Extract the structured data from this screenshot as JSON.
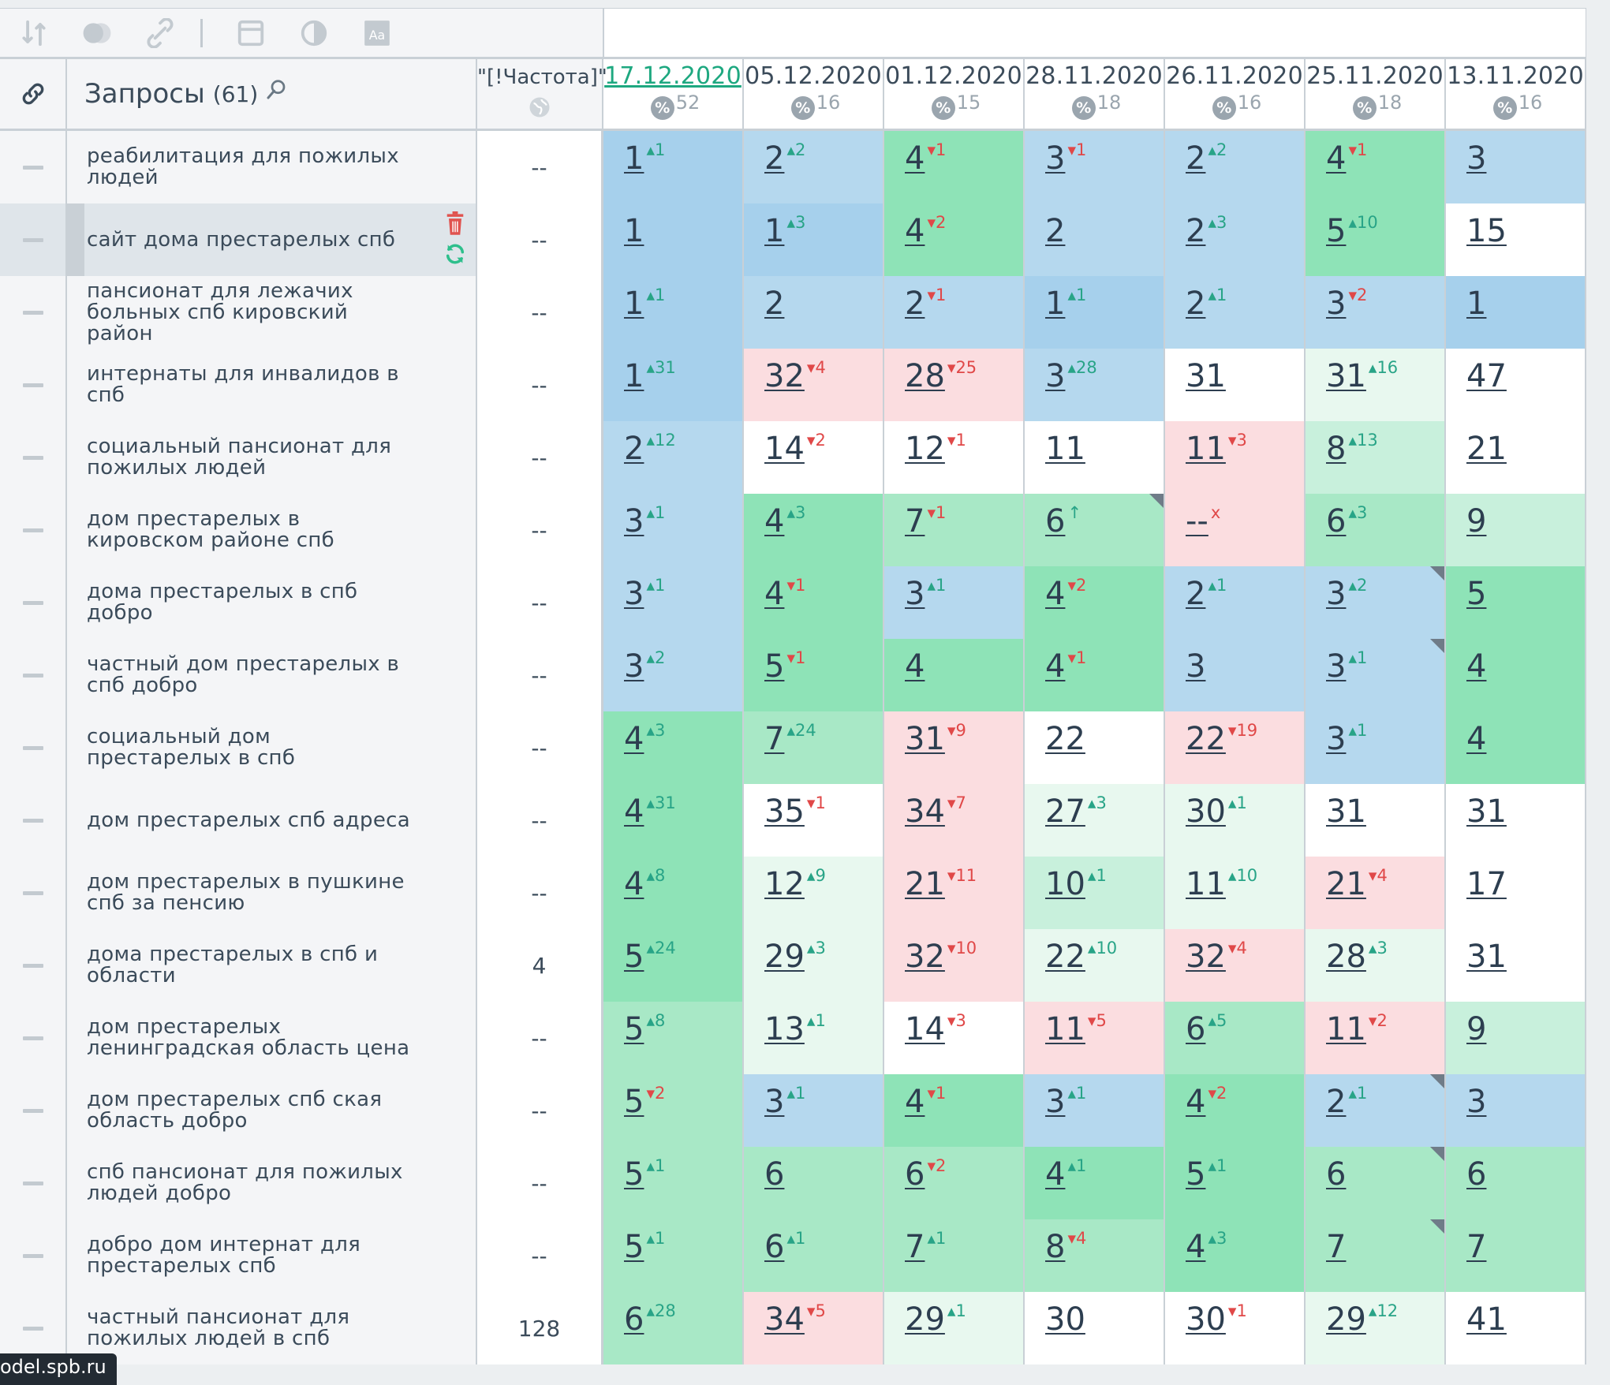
{
  "toolbar": {
    "icons": [
      "sort-icon",
      "toggle-icon",
      "link-icon",
      "calendar-icon",
      "contrast-icon",
      "font-icon"
    ]
  },
  "header": {
    "queries_title": "Запросы",
    "queries_count": "(61)",
    "frequency_title": "\"[!Частота]\"",
    "dates": [
      {
        "date": "17.12.2020",
        "pct": "52",
        "active": true
      },
      {
        "date": "05.12.2020",
        "pct": "16",
        "active": false
      },
      {
        "date": "01.12.2020",
        "pct": "15",
        "active": false
      },
      {
        "date": "28.11.2020",
        "pct": "18",
        "active": false
      },
      {
        "date": "26.11.2020",
        "pct": "16",
        "active": false
      },
      {
        "date": "25.11.2020",
        "pct": "18",
        "active": false
      },
      {
        "date": "13.11.2020",
        "pct": "16",
        "active": false
      }
    ],
    "pct_symbol": "%"
  },
  "rows": [
    {
      "query": "реабилитация для пожилых людей",
      "freq": "--",
      "cells": [
        {
          "v": "1",
          "c": "1",
          "d": "up",
          "bg": "bd"
        },
        {
          "v": "2",
          "c": "2",
          "d": "up",
          "bg": "b"
        },
        {
          "v": "4",
          "c": "1",
          "d": "dn",
          "bg": "g"
        },
        {
          "v": "3",
          "c": "1",
          "d": "dn",
          "bg": "b"
        },
        {
          "v": "2",
          "c": "2",
          "d": "up",
          "bg": "b"
        },
        {
          "v": "4",
          "c": "1",
          "d": "dn",
          "bg": "g"
        },
        {
          "v": "3",
          "c": "",
          "d": "",
          "bg": "b"
        }
      ]
    },
    {
      "query": "сайт дома престарелых спб",
      "freq": "--",
      "hl": true,
      "cells": [
        {
          "v": "1",
          "c": "",
          "d": "",
          "bg": "bd"
        },
        {
          "v": "1",
          "c": "3",
          "d": "up",
          "bg": "bd"
        },
        {
          "v": "4",
          "c": "2",
          "d": "dn",
          "bg": "g"
        },
        {
          "v": "2",
          "c": "",
          "d": "",
          "bg": "b"
        },
        {
          "v": "2",
          "c": "3",
          "d": "up",
          "bg": "b"
        },
        {
          "v": "5",
          "c": "10",
          "d": "up",
          "bg": "g"
        },
        {
          "v": "15",
          "c": "",
          "d": "",
          "bg": "w"
        }
      ]
    },
    {
      "query": "пансионат для лежачих больных спб кировский район",
      "freq": "--",
      "cells": [
        {
          "v": "1",
          "c": "1",
          "d": "up",
          "bg": "bd"
        },
        {
          "v": "2",
          "c": "",
          "d": "",
          "bg": "b"
        },
        {
          "v": "2",
          "c": "1",
          "d": "dn",
          "bg": "b"
        },
        {
          "v": "1",
          "c": "1",
          "d": "up",
          "bg": "bd"
        },
        {
          "v": "2",
          "c": "1",
          "d": "up",
          "bg": "b"
        },
        {
          "v": "3",
          "c": "2",
          "d": "dn",
          "bg": "b"
        },
        {
          "v": "1",
          "c": "",
          "d": "",
          "bg": "bd"
        }
      ]
    },
    {
      "query": "интернаты для инвалидов в спб",
      "freq": "--",
      "cells": [
        {
          "v": "1",
          "c": "31",
          "d": "up",
          "bg": "bd"
        },
        {
          "v": "32",
          "c": "4",
          "d": "dn",
          "bg": "r"
        },
        {
          "v": "28",
          "c": "25",
          "d": "dn",
          "bg": "r"
        },
        {
          "v": "3",
          "c": "28",
          "d": "up",
          "bg": "b"
        },
        {
          "v": "31",
          "c": "",
          "d": "",
          "bg": "w"
        },
        {
          "v": "31",
          "c": "16",
          "d": "up",
          "bg": "gx"
        },
        {
          "v": "47",
          "c": "",
          "d": "",
          "bg": "w"
        }
      ]
    },
    {
      "query": "социальный пансионат для пожилых людей",
      "freq": "--",
      "cells": [
        {
          "v": "2",
          "c": "12",
          "d": "up",
          "bg": "b"
        },
        {
          "v": "14",
          "c": "2",
          "d": "dn",
          "bg": "w"
        },
        {
          "v": "12",
          "c": "1",
          "d": "dn",
          "bg": "w"
        },
        {
          "v": "11",
          "c": "",
          "d": "",
          "bg": "w"
        },
        {
          "v": "11",
          "c": "3",
          "d": "dn",
          "bg": "r"
        },
        {
          "v": "8",
          "c": "13",
          "d": "up",
          "bg": "gl"
        },
        {
          "v": "21",
          "c": "",
          "d": "",
          "bg": "w"
        }
      ]
    },
    {
      "query": "дом престарелых в кировском районе спб",
      "freq": "--",
      "cells": [
        {
          "v": "3",
          "c": "1",
          "d": "up",
          "bg": "b"
        },
        {
          "v": "4",
          "c": "3",
          "d": "up",
          "bg": "g"
        },
        {
          "v": "7",
          "c": "1",
          "d": "dn",
          "bg": "gm"
        },
        {
          "v": "6",
          "c": "↑",
          "d": "up",
          "bg": "gm",
          "flag": true
        },
        {
          "v": "--",
          "c": "x",
          "d": "xx",
          "bg": "r"
        },
        {
          "v": "6",
          "c": "3",
          "d": "up",
          "bg": "gm"
        },
        {
          "v": "9",
          "c": "",
          "d": "",
          "bg": "gl"
        }
      ]
    },
    {
      "query": "дома престарелых в спб добро",
      "freq": "--",
      "cells": [
        {
          "v": "3",
          "c": "1",
          "d": "up",
          "bg": "b"
        },
        {
          "v": "4",
          "c": "1",
          "d": "dn",
          "bg": "g"
        },
        {
          "v": "3",
          "c": "1",
          "d": "up",
          "bg": "b"
        },
        {
          "v": "4",
          "c": "2",
          "d": "dn",
          "bg": "g"
        },
        {
          "v": "2",
          "c": "1",
          "d": "up",
          "bg": "b"
        },
        {
          "v": "3",
          "c": "2",
          "d": "up",
          "bg": "b",
          "flag": true
        },
        {
          "v": "5",
          "c": "",
          "d": "",
          "bg": "g"
        }
      ]
    },
    {
      "query": "частный дом престарелых в спб добро",
      "freq": "--",
      "cells": [
        {
          "v": "3",
          "c": "2",
          "d": "up",
          "bg": "b"
        },
        {
          "v": "5",
          "c": "1",
          "d": "dn",
          "bg": "g"
        },
        {
          "v": "4",
          "c": "",
          "d": "",
          "bg": "g"
        },
        {
          "v": "4",
          "c": "1",
          "d": "dn",
          "bg": "g"
        },
        {
          "v": "3",
          "c": "",
          "d": "",
          "bg": "b"
        },
        {
          "v": "3",
          "c": "1",
          "d": "up",
          "bg": "b",
          "flag": true
        },
        {
          "v": "4",
          "c": "",
          "d": "",
          "bg": "g"
        }
      ]
    },
    {
      "query": "социальный дом престарелых в спб",
      "freq": "--",
      "cells": [
        {
          "v": "4",
          "c": "3",
          "d": "up",
          "bg": "g"
        },
        {
          "v": "7",
          "c": "24",
          "d": "up",
          "bg": "gm"
        },
        {
          "v": "31",
          "c": "9",
          "d": "dn",
          "bg": "r"
        },
        {
          "v": "22",
          "c": "",
          "d": "",
          "bg": "w"
        },
        {
          "v": "22",
          "c": "19",
          "d": "dn",
          "bg": "r"
        },
        {
          "v": "3",
          "c": "1",
          "d": "up",
          "bg": "b"
        },
        {
          "v": "4",
          "c": "",
          "d": "",
          "bg": "g"
        }
      ]
    },
    {
      "query": "дом престарелых спб адреса",
      "freq": "--",
      "cells": [
        {
          "v": "4",
          "c": "31",
          "d": "up",
          "bg": "g"
        },
        {
          "v": "35",
          "c": "1",
          "d": "dn",
          "bg": "w"
        },
        {
          "v": "34",
          "c": "7",
          "d": "dn",
          "bg": "r"
        },
        {
          "v": "27",
          "c": "3",
          "d": "up",
          "bg": "gx"
        },
        {
          "v": "30",
          "c": "1",
          "d": "up",
          "bg": "gx"
        },
        {
          "v": "31",
          "c": "",
          "d": "",
          "bg": "w"
        },
        {
          "v": "31",
          "c": "",
          "d": "",
          "bg": "w"
        }
      ]
    },
    {
      "query": "дом престарелых в пушкине спб за пенсию",
      "freq": "--",
      "cells": [
        {
          "v": "4",
          "c": "8",
          "d": "up",
          "bg": "g"
        },
        {
          "v": "12",
          "c": "9",
          "d": "up",
          "bg": "gx"
        },
        {
          "v": "21",
          "c": "11",
          "d": "dn",
          "bg": "r"
        },
        {
          "v": "10",
          "c": "1",
          "d": "up",
          "bg": "gl"
        },
        {
          "v": "11",
          "c": "10",
          "d": "up",
          "bg": "gx"
        },
        {
          "v": "21",
          "c": "4",
          "d": "dn",
          "bg": "r"
        },
        {
          "v": "17",
          "c": "",
          "d": "",
          "bg": "w"
        }
      ]
    },
    {
      "query": "дома престарелых в спб и области",
      "freq": "4",
      "cells": [
        {
          "v": "5",
          "c": "24",
          "d": "up",
          "bg": "g"
        },
        {
          "v": "29",
          "c": "3",
          "d": "up",
          "bg": "gx"
        },
        {
          "v": "32",
          "c": "10",
          "d": "dn",
          "bg": "r"
        },
        {
          "v": "22",
          "c": "10",
          "d": "up",
          "bg": "gx"
        },
        {
          "v": "32",
          "c": "4",
          "d": "dn",
          "bg": "r"
        },
        {
          "v": "28",
          "c": "3",
          "d": "up",
          "bg": "gx"
        },
        {
          "v": "31",
          "c": "",
          "d": "",
          "bg": "w"
        }
      ]
    },
    {
      "query": "дом престарелых ленинградская область цена",
      "freq": "--",
      "cells": [
        {
          "v": "5",
          "c": "8",
          "d": "up",
          "bg": "gm"
        },
        {
          "v": "13",
          "c": "1",
          "d": "up",
          "bg": "gx"
        },
        {
          "v": "14",
          "c": "3",
          "d": "dn",
          "bg": "w"
        },
        {
          "v": "11",
          "c": "5",
          "d": "dn",
          "bg": "r"
        },
        {
          "v": "6",
          "c": "5",
          "d": "up",
          "bg": "gm"
        },
        {
          "v": "11",
          "c": "2",
          "d": "dn",
          "bg": "r"
        },
        {
          "v": "9",
          "c": "",
          "d": "",
          "bg": "gl"
        }
      ]
    },
    {
      "query": "дом престарелых спб ская область добро",
      "freq": "--",
      "cells": [
        {
          "v": "5",
          "c": "2",
          "d": "dn",
          "bg": "gm"
        },
        {
          "v": "3",
          "c": "1",
          "d": "up",
          "bg": "b"
        },
        {
          "v": "4",
          "c": "1",
          "d": "dn",
          "bg": "g"
        },
        {
          "v": "3",
          "c": "1",
          "d": "up",
          "bg": "b"
        },
        {
          "v": "4",
          "c": "2",
          "d": "dn",
          "bg": "g"
        },
        {
          "v": "2",
          "c": "1",
          "d": "up",
          "bg": "b",
          "flag": true
        },
        {
          "v": "3",
          "c": "",
          "d": "",
          "bg": "b"
        }
      ]
    },
    {
      "query": "спб пансионат для пожилых людей добро",
      "freq": "--",
      "cells": [
        {
          "v": "5",
          "c": "1",
          "d": "up",
          "bg": "gm"
        },
        {
          "v": "6",
          "c": "",
          "d": "",
          "bg": "gm"
        },
        {
          "v": "6",
          "c": "2",
          "d": "dn",
          "bg": "gm"
        },
        {
          "v": "4",
          "c": "1",
          "d": "up",
          "bg": "g"
        },
        {
          "v": "5",
          "c": "1",
          "d": "up",
          "bg": "g"
        },
        {
          "v": "6",
          "c": "",
          "d": "",
          "bg": "gm",
          "flag": true
        },
        {
          "v": "6",
          "c": "",
          "d": "",
          "bg": "gm"
        }
      ]
    },
    {
      "query": "добро дом интернат для престарелых спб",
      "freq": "--",
      "cells": [
        {
          "v": "5",
          "c": "1",
          "d": "up",
          "bg": "gm"
        },
        {
          "v": "6",
          "c": "1",
          "d": "up",
          "bg": "gm"
        },
        {
          "v": "7",
          "c": "1",
          "d": "up",
          "bg": "gm"
        },
        {
          "v": "8",
          "c": "4",
          "d": "dn",
          "bg": "gm"
        },
        {
          "v": "4",
          "c": "3",
          "d": "up",
          "bg": "g"
        },
        {
          "v": "7",
          "c": "",
          "d": "",
          "bg": "gm",
          "flag": true
        },
        {
          "v": "7",
          "c": "",
          "d": "",
          "bg": "gm"
        }
      ]
    },
    {
      "query": "частный пансионат для пожилых людей в спб",
      "freq": "128",
      "cells": [
        {
          "v": "6",
          "c": "28",
          "d": "up",
          "bg": "gm"
        },
        {
          "v": "34",
          "c": "5",
          "d": "dn",
          "bg": "r"
        },
        {
          "v": "29",
          "c": "1",
          "d": "up",
          "bg": "gx"
        },
        {
          "v": "30",
          "c": "",
          "d": "",
          "bg": "w"
        },
        {
          "v": "30",
          "c": "1",
          "d": "dn",
          "bg": "w"
        },
        {
          "v": "29",
          "c": "12",
          "d": "up",
          "bg": "gx"
        },
        {
          "v": "41",
          "c": "",
          "d": "",
          "bg": "w"
        }
      ]
    }
  ],
  "tooltip": "odel.spb.ru",
  "colors": {
    "accent": "#1ea880",
    "up": "#28a487",
    "down": "#e04848"
  }
}
